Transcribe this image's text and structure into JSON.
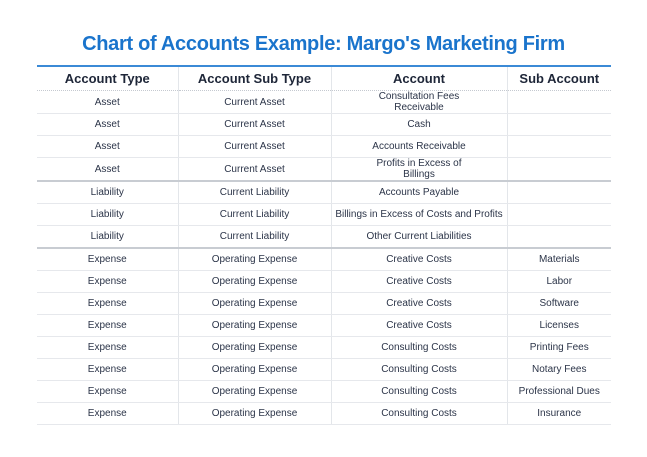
{
  "title": "Chart of Accounts Example: Margo's Marketing Firm",
  "columns": [
    "Account Type",
    "Account Sub Type",
    "Account",
    "Sub Account"
  ],
  "rows": [
    [
      "Asset",
      "Current Asset",
      "Consultation Fees Receivable",
      ""
    ],
    [
      "Asset",
      "Current Asset",
      "Cash",
      ""
    ],
    [
      "Asset",
      "Current Asset",
      "Accounts Receivable",
      ""
    ],
    [
      "Asset",
      "Current Asset",
      "Profits in Excess of Billings",
      ""
    ],
    [
      "Liability",
      "Current Liability",
      "Accounts Payable",
      ""
    ],
    [
      "Liability",
      "Current Liability",
      "Billings in Excess of Costs and Profits",
      ""
    ],
    [
      "Liability",
      "Current Liability",
      "Other Current Liabilities",
      ""
    ],
    [
      "Expense",
      "Operating Expense",
      "Creative Costs",
      "Materials"
    ],
    [
      "Expense",
      "Operating Expense",
      "Creative Costs",
      "Labor"
    ],
    [
      "Expense",
      "Operating Expense",
      "Creative Costs",
      "Software"
    ],
    [
      "Expense",
      "Operating Expense",
      "Creative Costs",
      "Licenses"
    ],
    [
      "Expense",
      "Operating Expense",
      "Consulting Costs",
      "Printing Fees"
    ],
    [
      "Expense",
      "Operating Expense",
      "Consulting Costs",
      "Notary Fees"
    ],
    [
      "Expense",
      "Operating Expense",
      "Consulting Costs",
      "Professional Dues"
    ],
    [
      "Expense",
      "Operating Expense",
      "Consulting Costs",
      "Insurance"
    ]
  ]
}
